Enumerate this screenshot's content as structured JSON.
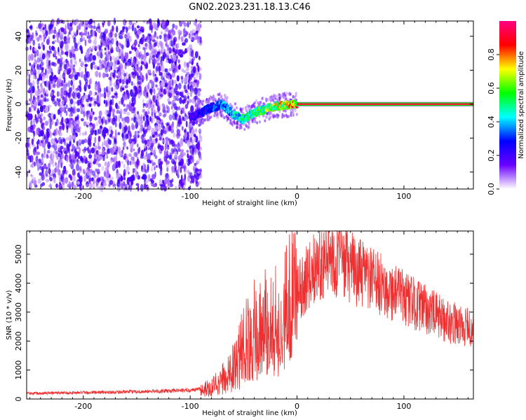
{
  "title": "GN02.2023.231.18.13.C46",
  "chart_data": [
    {
      "type": "heatmap",
      "xlabel": "Height of straight line (km)",
      "ylabel": "Frequency (Hz)",
      "xlim": [
        -253,
        165
      ],
      "ylim": [
        -50,
        49
      ],
      "xticks": [
        -200,
        -100,
        0,
        100
      ],
      "yticks": [
        -40,
        -20,
        0,
        20,
        40
      ],
      "colorbar": {
        "label": "Normalized spectral amplitude",
        "range": [
          0,
          1
        ],
        "ticks": [
          "0.0",
          "0.2",
          "0.4",
          "0.6",
          "0.8"
        ],
        "colors": [
          "#ffffff",
          "#6a00ff",
          "#0000ff",
          "#00ffff",
          "#00ff00",
          "#ffff00",
          "#ff0000",
          "#ff0080"
        ]
      },
      "ridge": {
        "x": [
          -100,
          -90,
          -80,
          -70,
          -60,
          -50,
          -40,
          -30,
          -20,
          -10,
          0,
          165
        ],
        "y": [
          -8,
          -5,
          -2,
          0,
          -6,
          -9,
          -5,
          -3,
          -1,
          -0.5,
          0,
          0
        ]
      },
      "noise_region_x": [
        -253,
        -90
      ],
      "carrier_frequency": 0
    },
    {
      "type": "line",
      "xlabel": "Height of straight line (km)",
      "ylabel": "SNR (10 * v/v)",
      "xlim": [
        -253,
        165
      ],
      "ylim": [
        0,
        5800
      ],
      "xticks": [
        -200,
        -100,
        0,
        100
      ],
      "yticks": [
        0,
        1000,
        2000,
        3000,
        4000,
        5000
      ],
      "color": "#f03030",
      "envelope": {
        "x": [
          -253,
          -200,
          -150,
          -100,
          -80,
          -70,
          -60,
          -50,
          -40,
          -30,
          -20,
          -10,
          0,
          10,
          20,
          30,
          40,
          60,
          80,
          100,
          120,
          140,
          165
        ],
        "y": [
          200,
          220,
          250,
          300,
          400,
          700,
          1100,
          1900,
          2400,
          2700,
          3000,
          3200,
          3600,
          4200,
          4700,
          4900,
          4800,
          4300,
          3900,
          3500,
          3100,
          2700,
          2400
        ]
      }
    }
  ]
}
